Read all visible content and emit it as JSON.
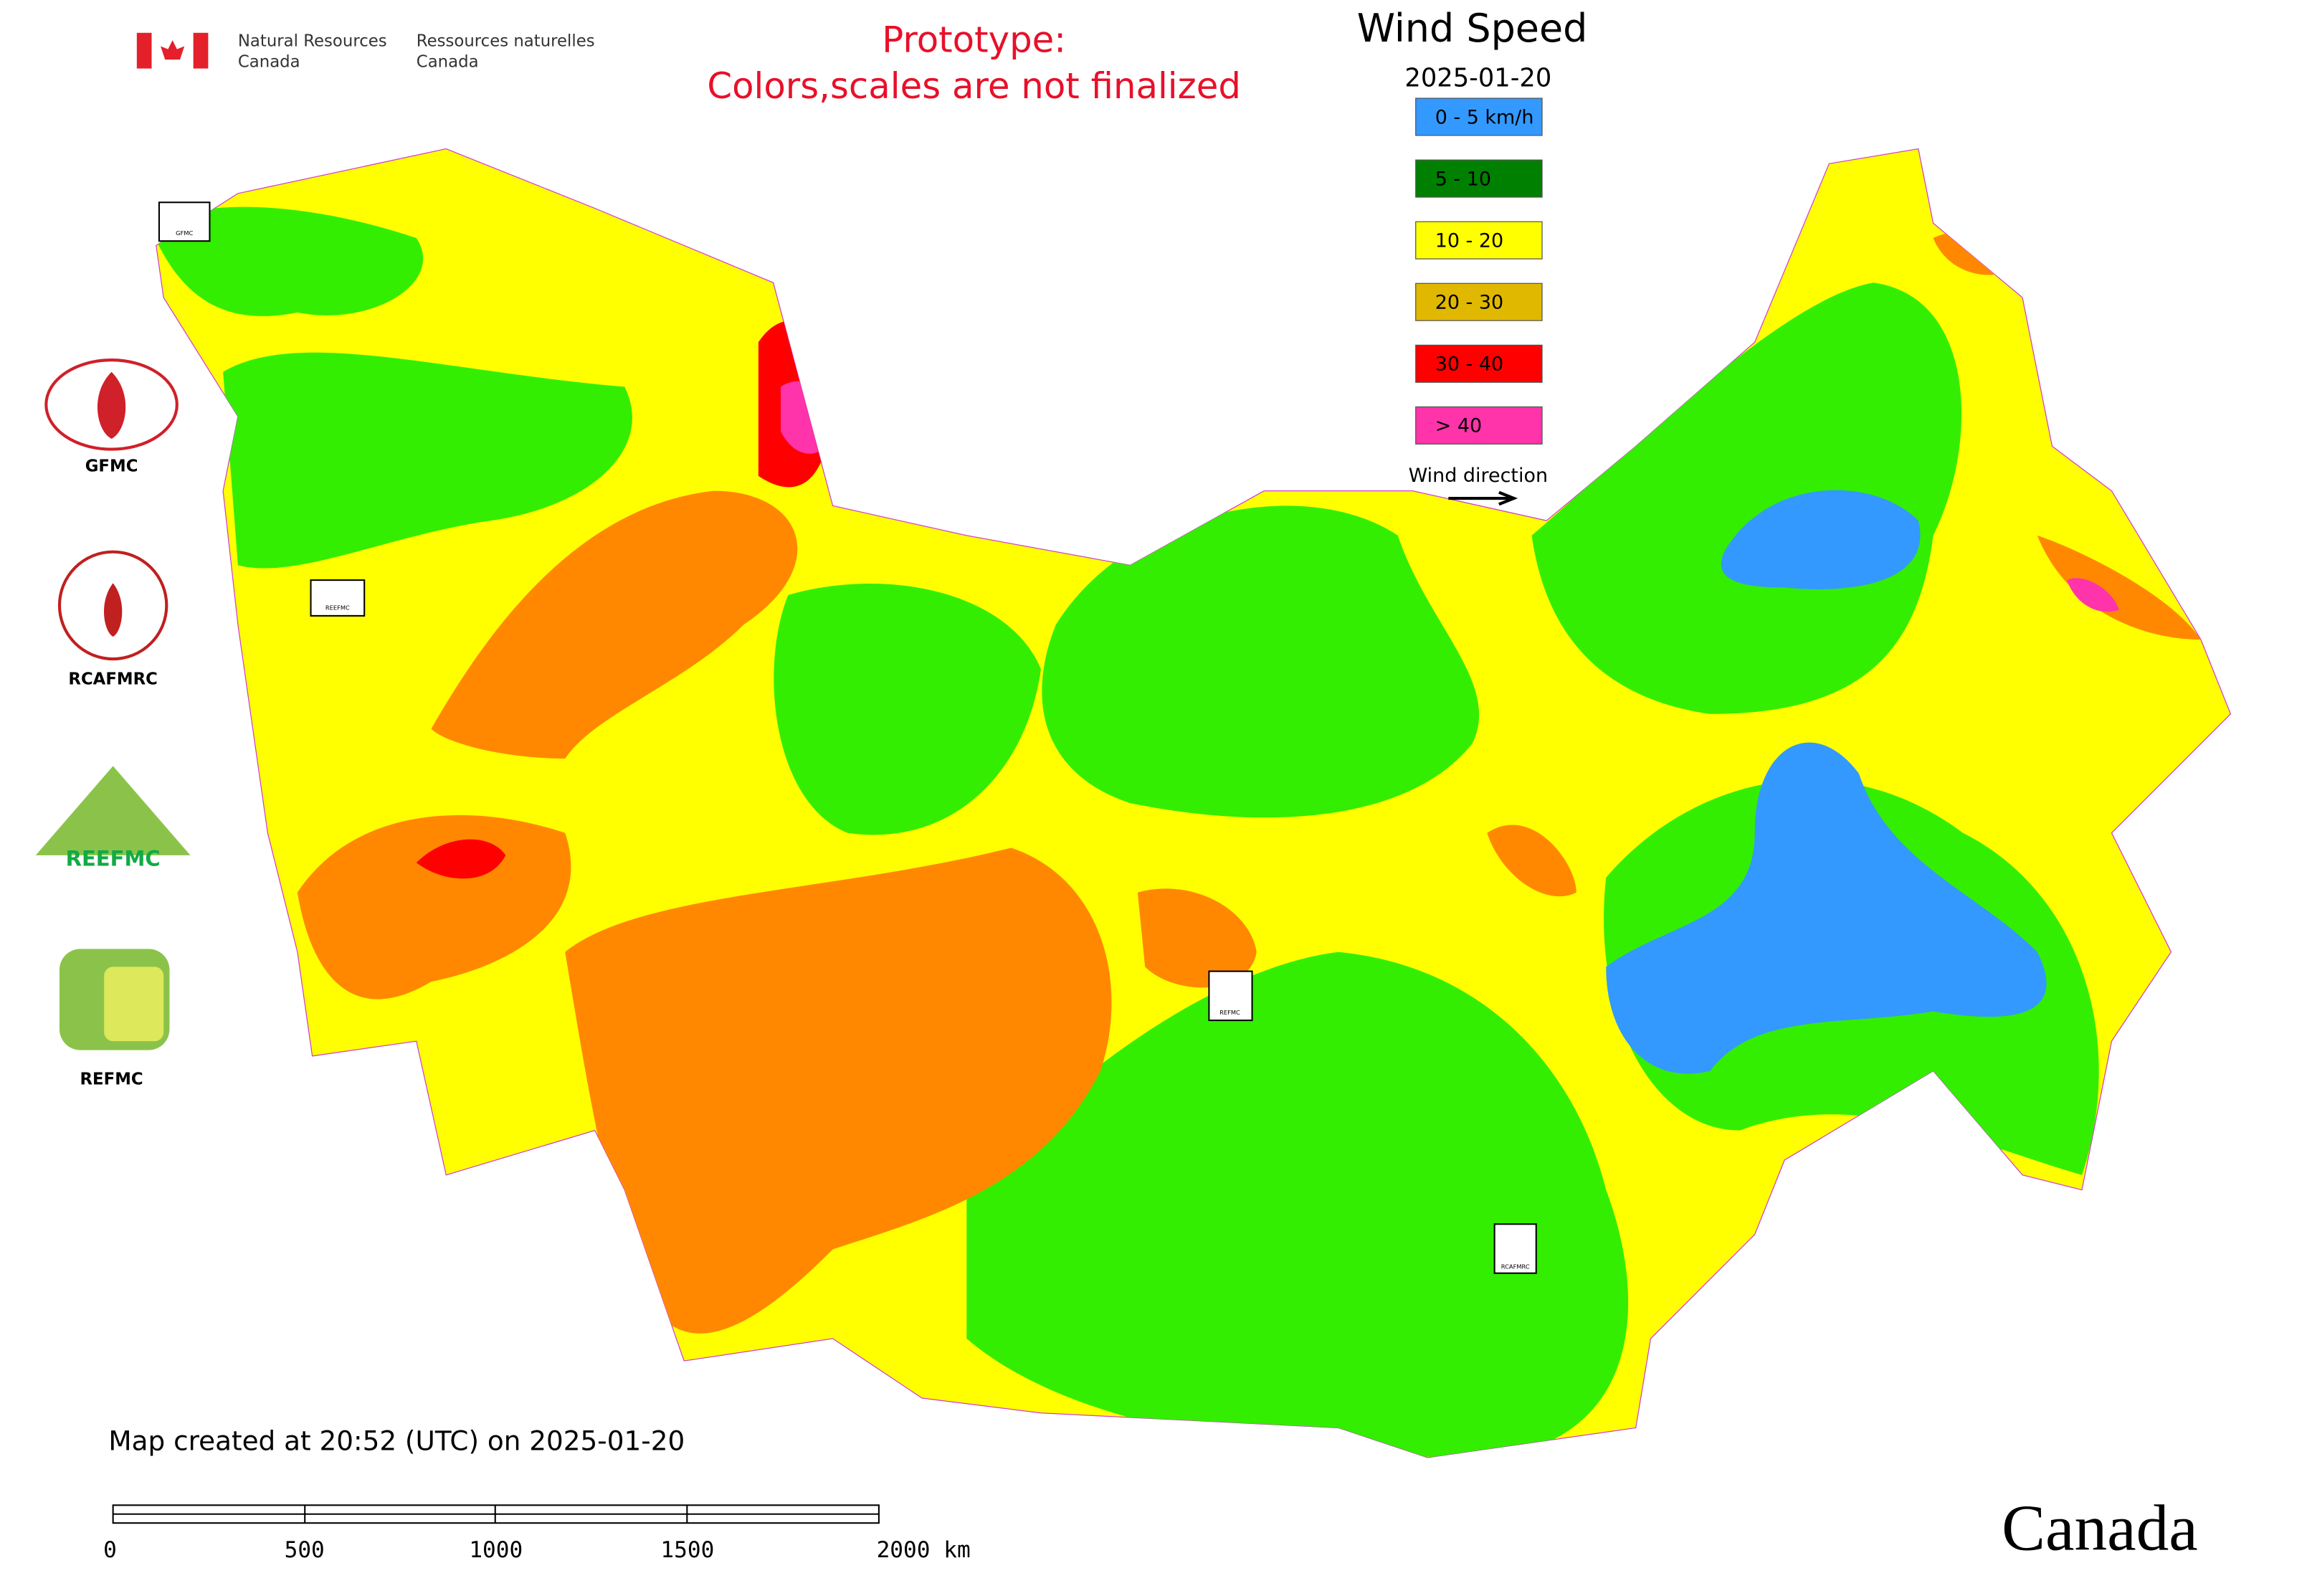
{
  "header": {
    "org_en_1": "Natural Resources",
    "org_en_2": "Canada",
    "org_fr_1": "Ressources naturelles",
    "org_fr_2": "Canada"
  },
  "notice": [
    "Prototype:",
    "Colors,scales are not finalized"
  ],
  "legend": {
    "title": "Wind Speed",
    "date": "2025-01-20",
    "items": [
      {
        "label": "0 - 5 km/h",
        "color": "#3399ff"
      },
      {
        "label": "5 - 10",
        "color": "#008000"
      },
      {
        "label": "10 - 20",
        "color": "#ffff00"
      },
      {
        "label": "20 - 30",
        "color": "#e0b800"
      },
      {
        "label": "30 - 40",
        "color": "#ff0000"
      },
      {
        "label": "> 40",
        "color": "#ff33aa"
      }
    ],
    "direction_label": "Wind direction"
  },
  "logos": [
    "GFMC",
    "RCAFMRC",
    "REEFMC",
    "REFMC"
  ],
  "map_markers": [
    "GFMC",
    "REEFMC",
    "REFMC",
    "RCAFMRC"
  ],
  "footer": {
    "created": "Map created at 20:52 (UTC) on 2025-01-20",
    "scale_labels": [
      "0",
      "500",
      "1000",
      "1500",
      "2000 km"
    ],
    "wordmark": "Canada"
  }
}
